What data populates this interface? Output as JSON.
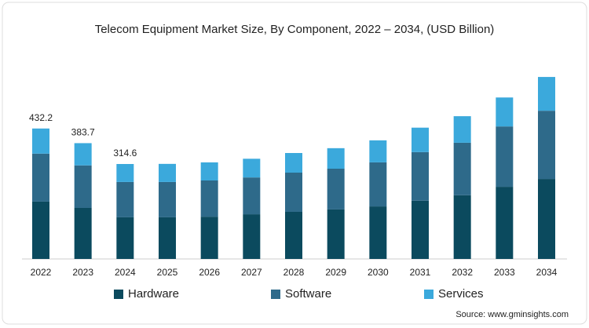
{
  "chart_data": {
    "type": "stacked_bar",
    "title": "Telecom Equipment Market Size, By Component, 2022 – 2034, (USD Billion)",
    "categories": [
      "2022",
      "2023",
      "2024",
      "2025",
      "2026",
      "2027",
      "2028",
      "2029",
      "2030",
      "2031",
      "2032",
      "2033",
      "2034"
    ],
    "series": [
      {
        "name": "Hardware",
        "color": "#0b4a5e",
        "values": [
          190,
          169,
          138,
          138,
          140,
          148,
          156,
          164,
          174,
          193,
          211,
          239,
          265
        ]
      },
      {
        "name": "Software",
        "color": "#2e6a8a",
        "values": [
          159,
          141,
          117,
          117,
          120,
          122,
          130,
          135,
          146,
          161,
          174,
          200,
          226
        ]
      },
      {
        "name": "Services",
        "color": "#3ba9dc",
        "values": [
          83.2,
          73.7,
          59.6,
          60,
          60,
          62,
          65,
          68,
          73,
          81,
          88,
          96,
          112
        ]
      }
    ],
    "total_labels": [
      432.2,
      383.7,
      314.6,
      null,
      null,
      null,
      null,
      null,
      null,
      null,
      null,
      null,
      null
    ],
    "ylim": [
      0,
      650
    ],
    "source": "Source: www.gminsights.com"
  }
}
